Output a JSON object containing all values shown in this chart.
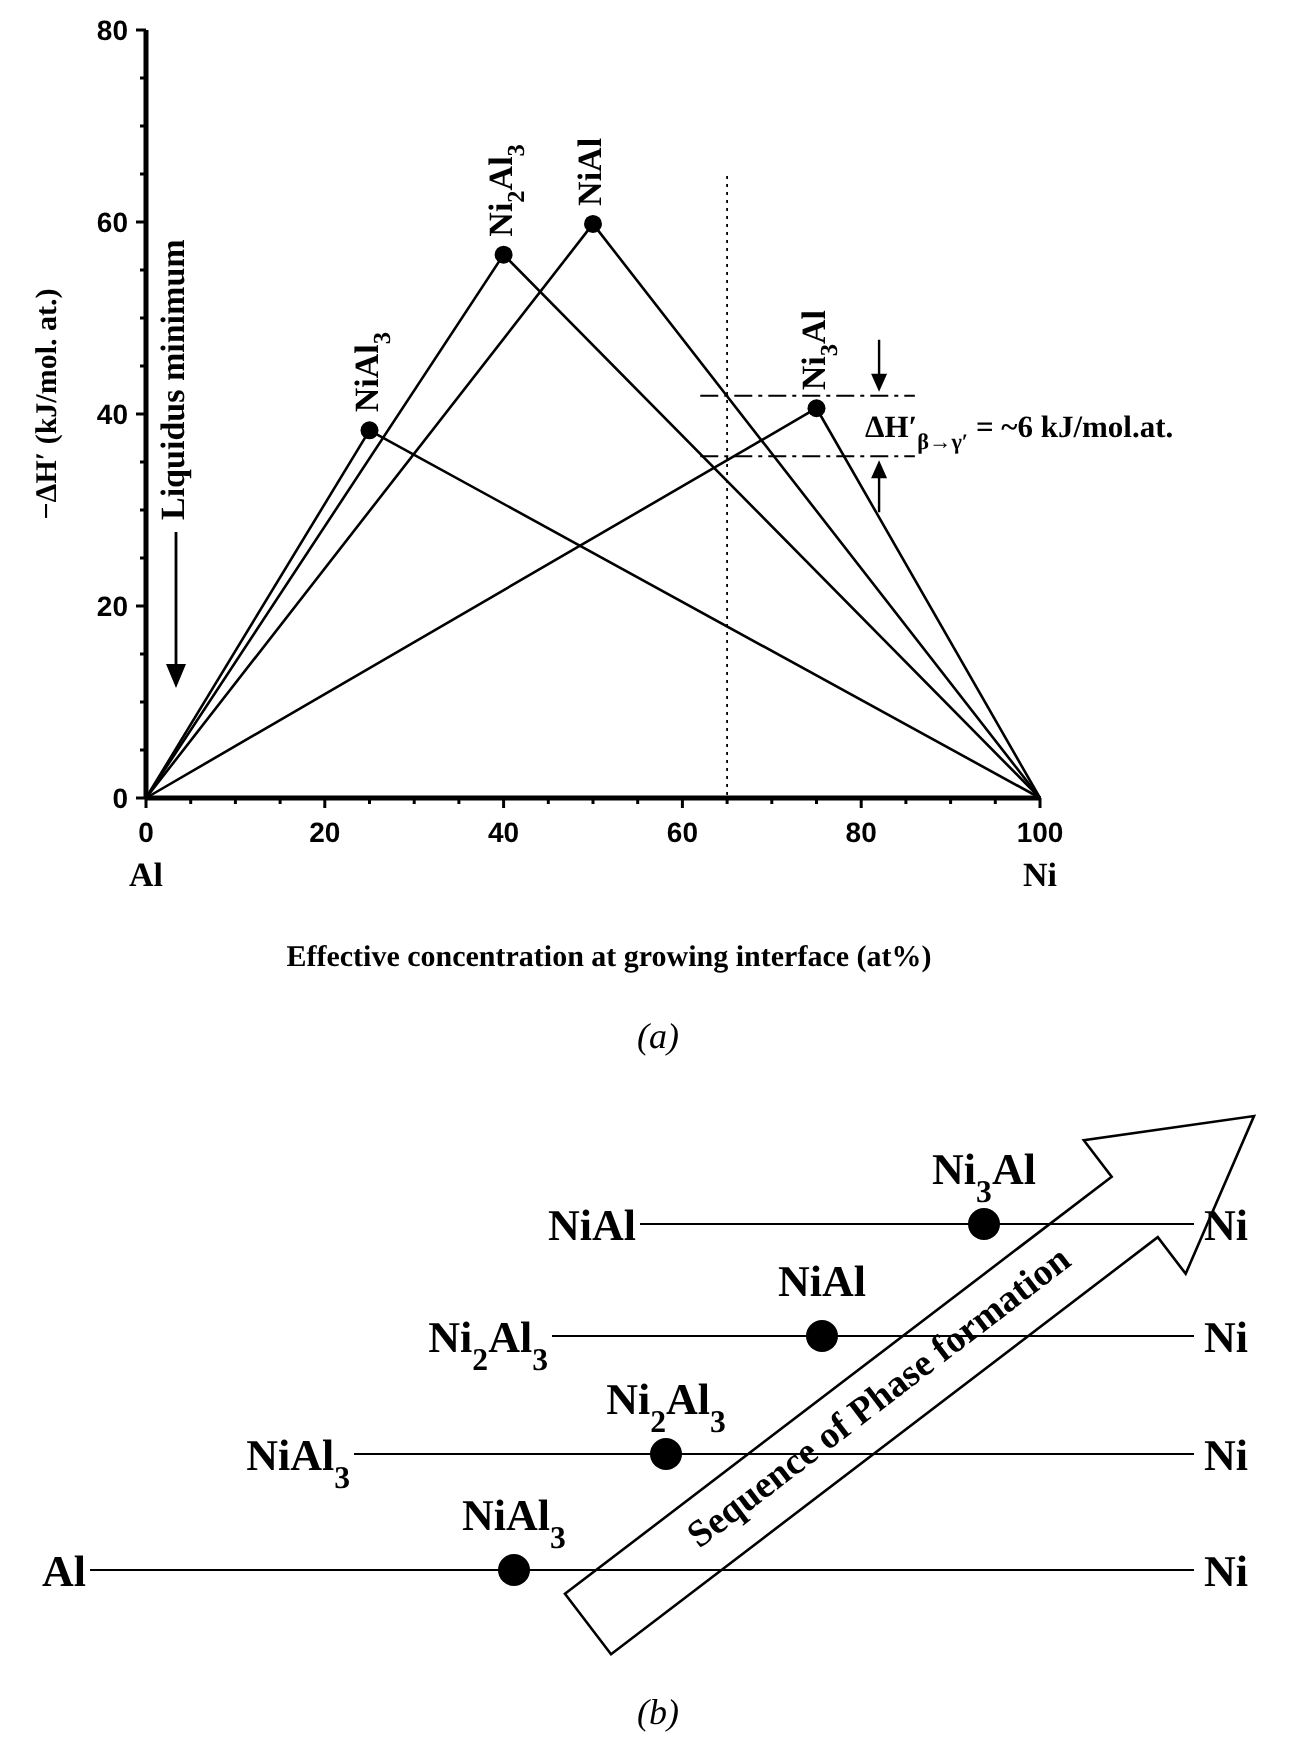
{
  "chart_data": [
    {
      "type": "line",
      "xlabel": "Effective concentration at growing interface (at%)",
      "ylabel": "−ΔH′ (kJ/mol. at.)",
      "xlim": [
        0,
        100
      ],
      "ylim": [
        0,
        80
      ],
      "xticks": [
        0,
        {
          "value": 5,
          "label": null
        },
        {
          "value": 10,
          "label": null
        },
        {
          "value": 15,
          "label": null
        },
        20,
        {
          "value": 25,
          "label": null
        },
        {
          "value": 30,
          "label": null
        },
        {
          "value": 35,
          "label": null
        },
        40,
        {
          "value": 45,
          "label": null
        },
        {
          "value": 50,
          "label": null
        },
        {
          "value": 55,
          "label": null
        },
        60,
        {
          "value": 65,
          "label": null
        },
        {
          "value": 70,
          "label": null
        },
        {
          "value": 75,
          "label": null
        },
        80,
        {
          "value": 85,
          "label": null
        },
        {
          "value": 90,
          "label": null
        },
        {
          "value": 95,
          "label": null
        },
        100
      ],
      "yticks": [
        0,
        {
          "value": 5,
          "label": null
        },
        {
          "value": 10,
          "label": null
        },
        {
          "value": 15,
          "label": null
        },
        20,
        {
          "value": 25,
          "label": null
        },
        {
          "value": 30,
          "label": null
        },
        {
          "value": 35,
          "label": null
        },
        40,
        {
          "value": 45,
          "label": null
        },
        {
          "value": 50,
          "label": null
        },
        {
          "value": 55,
          "label": null
        },
        60,
        {
          "value": 65,
          "label": null
        },
        {
          "value": 70,
          "label": null
        },
        {
          "value": 75,
          "label": null
        },
        80
      ],
      "series": [
        {
          "color": "#000000",
          "x": [
            0,
            25,
            100
          ],
          "values": [
            0,
            38.3,
            0
          ]
        },
        {
          "color": "#000000",
          "x": [
            0,
            40,
            100
          ],
          "values": [
            0,
            56.6,
            0
          ]
        },
        {
          "color": "#000000",
          "x": [
            0,
            50,
            100
          ],
          "values": [
            0,
            59.8,
            0
          ]
        },
        {
          "color": "#000000",
          "x": [
            0,
            75,
            100
          ],
          "values": [
            0,
            40.6,
            0
          ]
        },
        {
          "type": "scatter",
          "marker": "circle",
          "color": "#000000",
          "x": [
            25,
            40,
            50,
            75
          ],
          "values": [
            38.3,
            56.6,
            59.8,
            40.6
          ]
        }
      ],
      "ref_lines": [
        {
          "axis": "x",
          "value": 65,
          "line_style": "dotted"
        },
        {
          "axis": "y",
          "value": 41.9,
          "line_style": "dashed"
        },
        {
          "axis": "y",
          "value": 35.6,
          "line_style": "dashed"
        }
      ],
      "annotations": [
        {
          "text": "NiAl$_{3}$",
          "x": 25,
          "y": 38.3
        },
        {
          "text": "Ni$_{2}$Al$_{3}$",
          "x": 40,
          "y": 56.6
        },
        {
          "text": "NiAl",
          "x": 50,
          "y": 59.8
        },
        {
          "text": "Ni$_{3}$Al",
          "x": 75,
          "y": 40.6
        },
        "Al",
        "Ni",
        "Liquidus minimum",
        "ΔH′$_{β→γ′}$ = ~6 kJ/mol.at.",
        "(a)"
      ]
    },
    {
      "type": "other",
      "annotations": [
        "Ni$_{3}$Al",
        "NiAl",
        "Ni",
        "NiAl",
        "Ni$_{2}$Al$_{3}$",
        "Ni",
        "Ni$_{2}$Al$_{3}$",
        "NiAl$_{3}$",
        "Ni",
        "NiAl$_{3}$",
        "Al",
        "Ni",
        "Sequence of Phase formation",
        "(b)"
      ]
    }
  ]
}
